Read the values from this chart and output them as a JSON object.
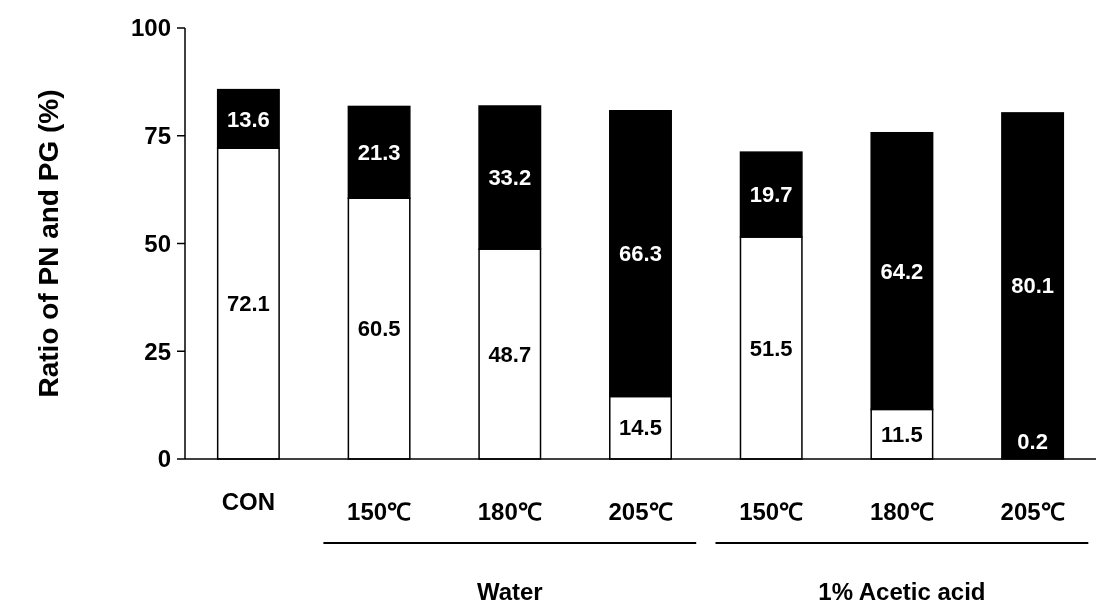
{
  "chart_data": {
    "type": "bar",
    "stacked": true,
    "ylabel": "Ratio of PN and PG (%)",
    "categories": [
      "CON",
      "150℃",
      "180℃",
      "205℃",
      "150℃",
      "180℃",
      "205℃"
    ],
    "series": [
      {
        "color": "#ffffff",
        "values": [
          72.1,
          60.5,
          48.7,
          14.5,
          51.5,
          11.5,
          0.2
        ]
      },
      {
        "color": "#000000",
        "values": [
          13.6,
          21.3,
          33.2,
          66.3,
          19.7,
          64.2,
          80.1
        ]
      }
    ],
    "ylim": [
      0,
      100
    ],
    "yticks": [
      0,
      25,
      50,
      75,
      100
    ],
    "data_labels": true,
    "grid": false,
    "annotations": [
      "Water",
      "1% Acetic acid"
    ]
  }
}
